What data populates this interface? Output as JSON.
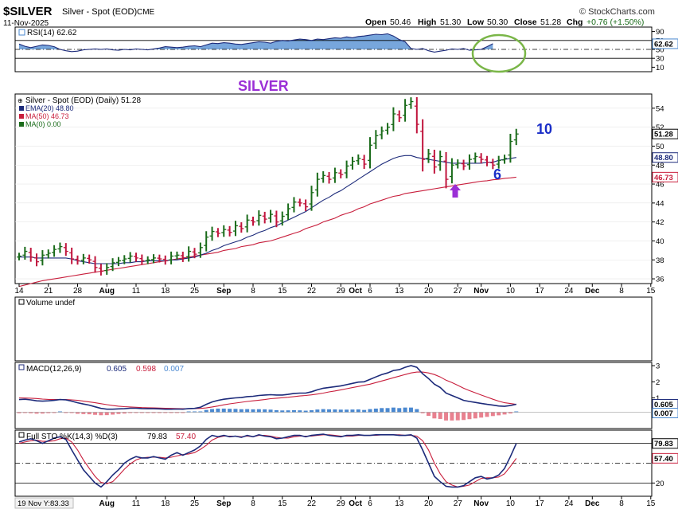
{
  "header": {
    "symbol": "$SILVER",
    "description": "Silver - Spot (EOD)",
    "exchange": "CME",
    "date": "11-Nov-2025",
    "brand": "© StockCharts.com",
    "quote": {
      "open_label": "Open",
      "open": "50.46",
      "high_label": "High",
      "high": "51.30",
      "low_label": "Low",
      "low": "50.30",
      "close_label": "Close",
      "close": "51.28",
      "chg_label": "Chg",
      "chg": "+0.76 (+1.50%)"
    }
  },
  "annotations": {
    "silver_title": "SILVER",
    "label_10": "10",
    "label_6": "6",
    "arrow_icon": "up-arrow-icon",
    "circle_icon": "highlight-circle-icon"
  },
  "colors": {
    "up": "#1a6b1a",
    "down": "#c0143c",
    "ema": "#1c2a7a",
    "ma50": "#c81e3c",
    "rsi_fill": "#4a88d0",
    "annotation_purple": "#9b2fd6",
    "annotation_blue": "#1a2ec8",
    "circle": "#7ab648"
  },
  "chart_data": [
    {
      "type": "line",
      "panel": "rsi",
      "legend": "RSI(14) 62.62",
      "ylim": [
        0,
        100
      ],
      "ticks": [
        "90",
        "70",
        "50",
        "30",
        "10"
      ],
      "tick_values": [
        90,
        70,
        50,
        30,
        10
      ],
      "last_label": "62.62",
      "values": [
        62,
        57,
        54,
        57,
        60,
        59,
        56,
        50,
        47,
        45,
        46,
        49,
        50,
        51,
        50,
        51,
        49,
        48,
        50,
        49,
        51,
        50,
        49,
        51,
        53,
        56,
        55,
        54,
        55,
        57,
        58,
        56,
        60,
        64,
        63,
        65,
        64,
        62,
        61,
        63,
        65,
        67,
        66,
        64,
        68,
        70,
        69,
        71,
        73,
        72,
        70,
        73,
        72,
        74,
        76,
        75,
        78,
        76,
        79,
        80,
        82,
        84,
        83,
        85,
        80,
        72,
        67,
        52,
        50,
        52,
        47,
        44,
        46,
        48,
        51,
        50,
        52,
        48,
        49,
        50,
        56,
        62.62
      ]
    },
    {
      "type": "bar",
      "panel": "price",
      "title": "SILVER",
      "legend": [
        "Silver - Spot (EOD) (Daily) 51.28",
        "EMA(20) 48.80",
        "MA(50) 46.73",
        "MA(0) 0.00"
      ],
      "ylim": [
        35.5,
        55.5
      ],
      "ticks": [
        "54",
        "52",
        "50",
        "48",
        "46",
        "44",
        "42",
        "40",
        "38",
        "36"
      ],
      "tick_values": [
        54,
        52,
        50,
        48,
        46,
        44,
        42,
        40,
        38,
        36
      ],
      "last_labels": [
        "51.28",
        "48.80",
        "46.73"
      ],
      "x_ticks": [
        "14",
        "21",
        "28",
        "Aug",
        "11",
        "18",
        "25",
        "Sep",
        "8",
        "15",
        "22",
        "29",
        "Oct",
        "6",
        "13",
        "20",
        "27",
        "Nov",
        "10",
        "17",
        "24",
        "Dec",
        "8",
        "15"
      ],
      "x_tick_index": [
        0,
        5,
        10,
        15,
        20,
        25,
        30,
        35,
        40,
        45,
        50,
        55,
        57.5,
        60,
        65,
        70,
        75,
        79,
        84,
        89,
        94,
        98,
        103,
        108
      ],
      "bold_ticks": [
        "Aug",
        "Sep",
        "Oct",
        "Nov",
        "Dec"
      ],
      "close": [
        38.4,
        38.9,
        38.3,
        37.8,
        38.5,
        38.7,
        39.1,
        39.4,
        38.9,
        38.1,
        37.9,
        38.2,
        38.0,
        37.2,
        36.8,
        37.2,
        37.7,
        37.9,
        38.1,
        38.4,
        38.2,
        37.9,
        38.0,
        38.2,
        38.1,
        37.9,
        38.4,
        38.5,
        38.2,
        38.9,
        38.6,
        39.3,
        40.4,
        41.0,
        40.8,
        41.2,
        40.9,
        41.6,
        41.3,
        42.2,
        42.0,
        42.7,
        42.3,
        42.8,
        42.0,
        42.6,
        43.4,
        44.1,
        44.0,
        43.6,
        45.1,
        46.5,
        46.9,
        46.5,
        47.2,
        47.0,
        47.9,
        48.4,
        48.7,
        48.1,
        50.1,
        51.1,
        51.6,
        52.0,
        53.4,
        53.0,
        54.3,
        54.7,
        52.3,
        48.6,
        49.2,
        47.8,
        48.9,
        46.5,
        48.0,
        48.2,
        47.9,
        48.6,
        48.9,
        48.6,
        48.3,
        48.0,
        48.5,
        48.7,
        50.5,
        51.28
      ],
      "ema20": [
        38.3,
        38.3,
        38.3,
        38.2,
        38.2,
        38.2,
        38.2,
        38.2,
        38.2,
        38.1,
        37.9,
        37.8,
        37.7,
        37.6,
        37.6,
        37.6,
        37.6,
        37.6,
        37.7,
        37.7,
        37.8,
        37.8,
        37.9,
        37.9,
        37.9,
        37.9,
        38.0,
        38.0,
        38.1,
        38.2,
        38.3,
        38.5,
        38.7,
        39.0,
        39.2,
        39.5,
        39.7,
        39.9,
        40.1,
        40.4,
        40.6,
        40.9,
        41.1,
        41.4,
        41.6,
        41.9,
        42.2,
        42.5,
        42.8,
        43.1,
        43.5,
        43.9,
        44.3,
        44.6,
        45.0,
        45.3,
        45.7,
        46.1,
        46.5,
        46.9,
        47.3,
        47.7,
        48.1,
        48.4,
        48.7,
        48.9,
        49.0,
        49.0,
        48.8,
        48.7,
        48.6,
        48.5,
        48.4,
        48.3,
        48.2,
        48.2,
        48.2,
        48.2,
        48.2,
        48.2,
        48.3,
        48.3,
        48.5,
        48.6,
        48.7,
        48.8
      ],
      "ma50": [
        35.2,
        35.35,
        35.5,
        35.65,
        35.8,
        35.9,
        36.0,
        36.1,
        36.2,
        36.3,
        36.4,
        36.5,
        36.6,
        36.7,
        36.8,
        36.9,
        37.0,
        37.1,
        37.2,
        37.3,
        37.4,
        37.5,
        37.6,
        37.7,
        37.8,
        37.9,
        38.0,
        38.1,
        38.2,
        38.3,
        38.4,
        38.5,
        38.6,
        38.7,
        38.8,
        39.0,
        39.1,
        39.2,
        39.4,
        39.5,
        39.6,
        39.8,
        39.9,
        40.0,
        40.2,
        40.4,
        40.6,
        40.8,
        41.0,
        41.3,
        41.5,
        41.7,
        42.0,
        42.2,
        42.4,
        42.7,
        42.9,
        43.1,
        43.4,
        43.6,
        43.9,
        44.1,
        44.3,
        44.5,
        44.7,
        44.8,
        45.0,
        45.1,
        45.2,
        45.3,
        45.4,
        45.5,
        45.6,
        45.7,
        45.8,
        45.9,
        46.0,
        46.1,
        46.2,
        46.3,
        46.35,
        46.45,
        46.5,
        46.6,
        46.65,
        46.73
      ]
    },
    {
      "type": "bar",
      "panel": "volume",
      "legend": "Volume undef"
    },
    {
      "type": "line",
      "panel": "macd",
      "legend": [
        "MACD(12,26,9)",
        "0.605",
        "0.598",
        "0.007"
      ],
      "ylim": [
        -0.9,
        3.2
      ],
      "ticks": [
        "3",
        "2",
        "1"
      ],
      "tick_values": [
        3,
        2,
        1
      ],
      "last_labels": [
        "0.605",
        "0.007"
      ],
      "macd": [
        0.9,
        0.92,
        0.88,
        0.82,
        0.8,
        0.82,
        0.85,
        0.9,
        0.88,
        0.8,
        0.7,
        0.62,
        0.55,
        0.45,
        0.35,
        0.3,
        0.3,
        0.32,
        0.33,
        0.36,
        0.36,
        0.34,
        0.33,
        0.33,
        0.32,
        0.3,
        0.3,
        0.31,
        0.3,
        0.34,
        0.35,
        0.42,
        0.6,
        0.75,
        0.85,
        0.92,
        0.96,
        1.0,
        1.02,
        1.08,
        1.1,
        1.15,
        1.18,
        1.2,
        1.18,
        1.18,
        1.22,
        1.28,
        1.3,
        1.3,
        1.38,
        1.5,
        1.6,
        1.65,
        1.7,
        1.75,
        1.82,
        1.9,
        1.98,
        2.0,
        2.15,
        2.3,
        2.45,
        2.55,
        2.7,
        2.75,
        2.9,
        3.0,
        2.9,
        2.5,
        2.2,
        1.85,
        1.65,
        1.3,
        1.15,
        1.0,
        0.85,
        0.78,
        0.72,
        0.66,
        0.6,
        0.55,
        0.5,
        0.48,
        0.53,
        0.605
      ],
      "signal": [
        1.0,
        0.99,
        0.98,
        0.96,
        0.93,
        0.91,
        0.9,
        0.9,
        0.9,
        0.88,
        0.85,
        0.8,
        0.75,
        0.7,
        0.64,
        0.58,
        0.53,
        0.49,
        0.46,
        0.44,
        0.42,
        0.4,
        0.39,
        0.38,
        0.37,
        0.36,
        0.35,
        0.34,
        0.33,
        0.33,
        0.34,
        0.35,
        0.38,
        0.44,
        0.5,
        0.57,
        0.63,
        0.68,
        0.73,
        0.78,
        0.82,
        0.86,
        0.9,
        0.95,
        0.98,
        1.01,
        1.04,
        1.08,
        1.12,
        1.15,
        1.19,
        1.24,
        1.3,
        1.37,
        1.43,
        1.5,
        1.57,
        1.64,
        1.71,
        1.78,
        1.85,
        1.95,
        2.05,
        2.15,
        2.25,
        2.35,
        2.45,
        2.55,
        2.6,
        2.6,
        2.55,
        2.45,
        2.3,
        2.1,
        1.95,
        1.78,
        1.6,
        1.45,
        1.32,
        1.18,
        1.05,
        0.92,
        0.8,
        0.7,
        0.65,
        0.598
      ]
    },
    {
      "type": "line",
      "panel": "stochastic",
      "legend": [
        "Full STO %K(14,3) %D(3)",
        "79.83",
        "57.40"
      ],
      "ylim": [
        0,
        100
      ],
      "ticks": [
        "20"
      ],
      "tick_values": [
        20
      ],
      "last_labels": [
        "79.83",
        "57.40"
      ],
      "k": [
        82,
        85,
        87,
        84,
        80,
        84,
        88,
        90,
        86,
        70,
        55,
        40,
        30,
        20,
        14,
        22,
        32,
        40,
        50,
        56,
        60,
        58,
        58,
        60,
        58,
        56,
        62,
        66,
        62,
        66,
        70,
        76,
        86,
        92,
        90,
        92,
        90,
        91,
        89,
        92,
        90,
        93,
        91,
        90,
        87,
        88,
        90,
        92,
        92,
        90,
        92,
        93,
        94,
        92,
        91,
        90,
        92,
        92,
        93,
        92,
        92,
        93,
        93,
        93,
        93,
        92,
        92,
        93,
        88,
        70,
        50,
        30,
        22,
        15,
        14,
        14,
        16,
        22,
        28,
        30,
        26,
        28,
        32,
        42,
        60,
        79.83
      ],
      "d": [
        80,
        82,
        84,
        85,
        83,
        83,
        84,
        87,
        88,
        82,
        70,
        55,
        42,
        30,
        21,
        19,
        22,
        31,
        41,
        49,
        55,
        58,
        59,
        59,
        59,
        58,
        59,
        61,
        63,
        64,
        66,
        71,
        77,
        85,
        89,
        91,
        91,
        91,
        90,
        91,
        90,
        92,
        92,
        91,
        89,
        88,
        88,
        90,
        91,
        91,
        91,
        92,
        93,
        93,
        92,
        91,
        91,
        91,
        92,
        92,
        92,
        92,
        93,
        93,
        93,
        93,
        92,
        92,
        91,
        84,
        70,
        50,
        34,
        22,
        17,
        14,
        15,
        17,
        22,
        27,
        28,
        28,
        29,
        34,
        45,
        57.4
      ]
    }
  ],
  "x_axis_bottom": {
    "ticks": [
      "Aug",
      "11",
      "18",
      "25",
      "Sep",
      "8",
      "15",
      "22",
      "29",
      "Oct",
      "6",
      "13",
      "20",
      "27",
      "Nov",
      "10",
      "17",
      "24",
      "Dec",
      "8",
      "15"
    ],
    "tick_index": [
      15,
      20,
      25,
      30,
      35,
      40,
      45,
      50,
      55,
      57.5,
      60,
      65,
      70,
      75,
      79,
      84,
      89,
      94,
      98,
      103,
      108
    ],
    "bold_ticks": [
      "Aug",
      "Sep",
      "Oct",
      "Nov",
      "Dec"
    ],
    "cursor_label": "19 Nov Y:83.33"
  }
}
